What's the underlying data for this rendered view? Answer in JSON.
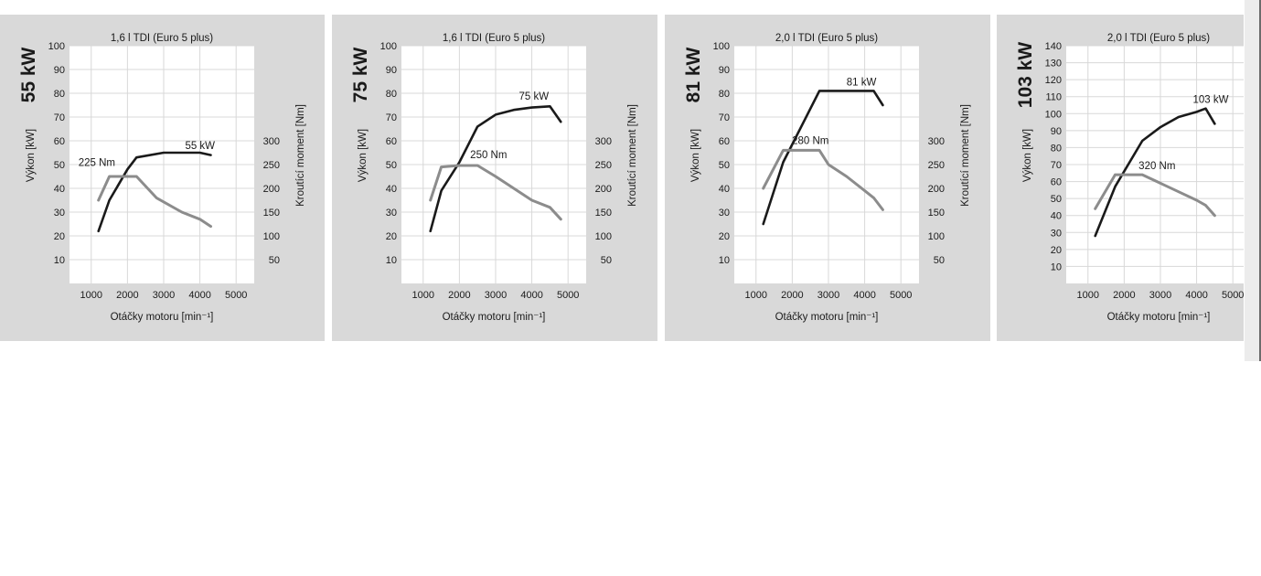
{
  "colors": {
    "panel_bg": "#d9d9d9",
    "plot_bg": "#ffffff",
    "grid": "#d8d8d8",
    "power_line": "#1a1a1a",
    "torque_line": "#8c8c8c",
    "text": "#1a1a1a"
  },
  "chart_data": [
    {
      "type": "line",
      "title": "1,6 l TDI (Euro 5  plus)",
      "side_label": "55 kW",
      "ylabel": "Výkon [kW]",
      "y2label": "Kroutící moment [Nm]",
      "xlabel": "Otáčky motoru [min⁻¹]",
      "xlim": [
        400,
        5500
      ],
      "x_ticks": [
        1000,
        2000,
        3000,
        4000,
        5000
      ],
      "ylim": [
        0,
        100
      ],
      "y_ticks": [
        10,
        20,
        30,
        40,
        50,
        60,
        70,
        80,
        90,
        100
      ],
      "y2_ticks": [
        50,
        100,
        150,
        200,
        250,
        300
      ],
      "series": [
        {
          "name": "Výkon [kW]",
          "axis": "left",
          "label": "55 kW",
          "x": [
            1200,
            1500,
            2000,
            2250,
            3000,
            3500,
            4000,
            4300
          ],
          "y": [
            22,
            35,
            48,
            53,
            55,
            55,
            55,
            54
          ]
        },
        {
          "name": "Kroutící moment [Nm]",
          "axis": "right",
          "label": "225 Nm",
          "x": [
            1200,
            1500,
            2000,
            2250,
            2800,
            3500,
            4000,
            4300
          ],
          "y": [
            175,
            225,
            225,
            225,
            180,
            150,
            135,
            120
          ]
        }
      ]
    },
    {
      "type": "line",
      "title": "1,6 l TDI (Euro 5  plus)",
      "side_label": "75 kW",
      "ylabel": "Výkon [kW]",
      "y2label": "Kroutící moment [Nm]",
      "xlabel": "Otáčky motoru [min⁻¹]",
      "xlim": [
        400,
        5500
      ],
      "x_ticks": [
        1000,
        2000,
        3000,
        4000,
        5000
      ],
      "ylim": [
        0,
        100
      ],
      "y_ticks": [
        10,
        20,
        30,
        40,
        50,
        60,
        70,
        80,
        90,
        100
      ],
      "y2_ticks": [
        50,
        100,
        150,
        200,
        250,
        300
      ],
      "series": [
        {
          "name": "Výkon [kW]",
          "axis": "left",
          "label": "75 kW",
          "x": [
            1200,
            1500,
            2000,
            2500,
            3000,
            3500,
            4000,
            4500,
            4800
          ],
          "y": [
            22,
            39,
            51,
            66,
            71,
            73,
            74,
            74.5,
            68
          ]
        },
        {
          "name": "Kroutící moment [Nm]",
          "axis": "right",
          "label": "250 Nm",
          "x": [
            1200,
            1500,
            2000,
            2500,
            3000,
            3500,
            4000,
            4500,
            4800
          ],
          "y": [
            175,
            245,
            248,
            248,
            225,
            200,
            175,
            160,
            135
          ]
        }
      ]
    },
    {
      "type": "line",
      "title": "2,0 l TDI (Euro 5  plus)",
      "side_label": "81 kW",
      "ylabel": "Výkon [kW]",
      "y2label": "Kroutící moment [Nm]",
      "xlabel": "Otáčky motoru [min⁻¹]",
      "xlim": [
        400,
        5500
      ],
      "x_ticks": [
        1000,
        2000,
        3000,
        4000,
        5000
      ],
      "ylim": [
        0,
        100
      ],
      "y_ticks": [
        10,
        20,
        30,
        40,
        50,
        60,
        70,
        80,
        90,
        100
      ],
      "y2_ticks": [
        50,
        100,
        150,
        200,
        250,
        300
      ],
      "series": [
        {
          "name": "Výkon [kW]",
          "axis": "left",
          "label": "81 kW",
          "x": [
            1200,
            1750,
            2750,
            3500,
            4250,
            4500
          ],
          "y": [
            25,
            51,
            81,
            81,
            81,
            75
          ]
        },
        {
          "name": "Kroutící moment [Nm]",
          "axis": "right",
          "label": "280 Nm",
          "x": [
            1200,
            1750,
            2750,
            3000,
            3500,
            4000,
            4250,
            4500
          ],
          "y": [
            200,
            280,
            280,
            250,
            225,
            195,
            180,
            155
          ]
        }
      ]
    },
    {
      "type": "line",
      "title": "2,0 l TDI (Euro 5 plus)",
      "side_label": "103 kW",
      "ylabel": "Výkon [kW]",
      "xlabel": "Otáčky motoru [min⁻¹]",
      "xlim": [
        400,
        5500
      ],
      "x_ticks": [
        1000,
        2000,
        3000,
        4000,
        5000
      ],
      "ylim": [
        0,
        140
      ],
      "y_ticks": [
        10,
        20,
        30,
        40,
        50,
        60,
        70,
        80,
        90,
        100,
        110,
        120,
        130,
        140
      ],
      "series": [
        {
          "name": "Výkon [kW]",
          "axis": "left",
          "label": "103 kW",
          "x": [
            1200,
            1750,
            2500,
            3000,
            3500,
            4000,
            4250,
            4500
          ],
          "y": [
            28,
            57,
            84,
            92,
            98,
            101,
            103,
            94
          ]
        },
        {
          "name": "Kroutící moment [Nm]",
          "axis": "left",
          "label": "320 Nm",
          "x": [
            1200,
            1750,
            2500,
            3000,
            3500,
            4000,
            4250,
            4500
          ],
          "y": [
            44,
            64,
            64,
            59,
            54,
            49,
            46,
            40
          ]
        }
      ]
    }
  ]
}
